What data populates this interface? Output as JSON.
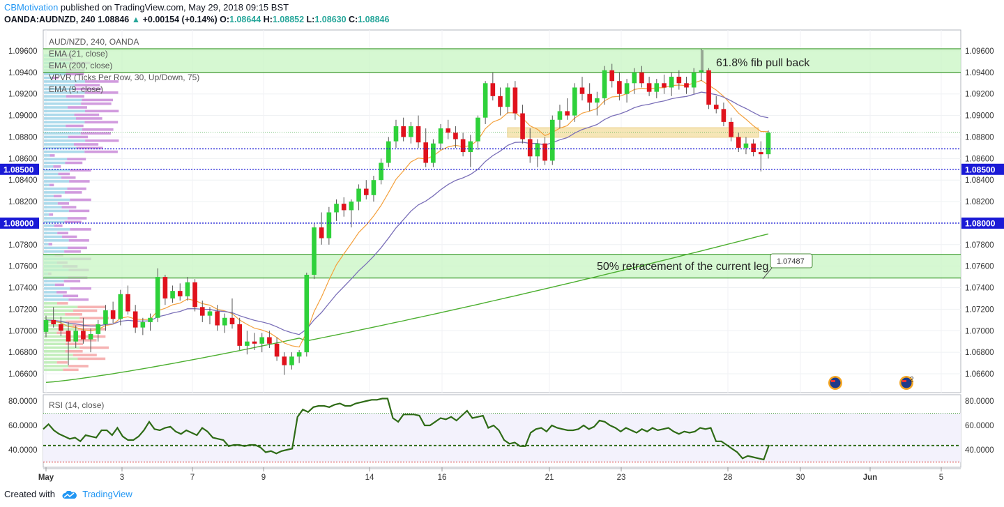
{
  "header": {
    "author": "CBMotivation",
    "published": " published on TradingView.com, May 29, 2018 09:15 BST",
    "symbol": "OANDA:AUDNZD, 240",
    "last": "1.08846",
    "change": "+0.00154 (+0.14%)",
    "o_label": "O:",
    "o": "1.08644",
    "h_label": "H:",
    "h": "1.08852",
    "l_label": "L:",
    "l": "1.08630",
    "c_label": "C:",
    "c": "1.08846"
  },
  "footer": {
    "created_with": "Created with",
    "brand": "TradingView"
  },
  "indicators": [
    "AUD/NZD, 240, OANDA",
    "EMA (21, close)",
    "EMA (200, close)",
    "VPVR (Ticks Per Row, 30, Up/Down, 75)",
    "EMA (9, close)"
  ],
  "rsi_label": "RSI (14, close)",
  "colors": {
    "up": "#2ed13a",
    "down": "#e0121c",
    "ema21": "#f4a03c",
    "ema200": "#4caf30",
    "ema9": "#7a6fb8",
    "zone": "#c8f5c3",
    "zone_line": "#3c9a2e",
    "level": "#1a1ad6",
    "rsi": "#2e6b16",
    "orange_zone": "#f6e4b0"
  },
  "chart_data": [
    {
      "type": "candlestick",
      "title": "",
      "x_ticks": [
        "May",
        "3",
        "7",
        "9",
        "14",
        "16",
        "21",
        "23",
        "28",
        "30",
        "Jun",
        "5"
      ],
      "y_ticks": [
        "1.09600",
        "1.09400",
        "1.09200",
        "1.09000",
        "1.08800",
        "1.08600",
        "1.08400",
        "1.08200",
        "1.08000",
        "1.07800",
        "1.07600",
        "1.07400",
        "1.07200",
        "1.07000",
        "1.06800",
        "1.06600"
      ],
      "ylim": [
        1.065,
        1.097
      ],
      "price_labels": [
        "1.08500",
        "1.08000"
      ],
      "horizontal_levels": [
        1.085,
        1.0869,
        1.08
      ],
      "zones": [
        {
          "from": 1.094,
          "to": 1.0962,
          "label": "61.8% fib pull back"
        },
        {
          "from": 1.0749,
          "to": 1.0771,
          "label": "50% retracement of the current leg"
        }
      ],
      "resistance_box": {
        "from": 1.0883,
        "to": 1.0888
      },
      "callout": "1.07487",
      "candles": [
        [
          1.0699,
          1.0714,
          1.0694,
          1.071
        ],
        [
          1.071,
          1.0722,
          1.0703,
          1.0706
        ],
        [
          1.0706,
          1.0713,
          1.0695,
          1.07
        ],
        [
          1.07,
          1.0708,
          1.0668,
          1.069
        ],
        [
          1.069,
          1.0705,
          1.0684,
          1.07
        ],
        [
          1.07,
          1.0712,
          1.0688,
          1.0692
        ],
        [
          1.0692,
          1.0702,
          1.068,
          1.0697
        ],
        [
          1.0697,
          1.071,
          1.069,
          1.0706
        ],
        [
          1.0706,
          1.0724,
          1.07,
          1.0719
        ],
        [
          1.0719,
          1.0727,
          1.0707,
          1.0711
        ],
        [
          1.0711,
          1.0738,
          1.0705,
          1.0734
        ],
        [
          1.0734,
          1.0742,
          1.0715,
          1.0718
        ],
        [
          1.0718,
          1.0724,
          1.0698,
          1.0703
        ],
        [
          1.0703,
          1.0712,
          1.0696,
          1.0708
        ],
        [
          1.0708,
          1.0716,
          1.07,
          1.0712
        ],
        [
          1.0712,
          1.0758,
          1.0708,
          1.075
        ],
        [
          1.075,
          1.0752,
          1.0724,
          1.073
        ],
        [
          1.073,
          1.0742,
          1.0726,
          1.0737
        ],
        [
          1.0737,
          1.0744,
          1.0728,
          1.0732
        ],
        [
          1.0732,
          1.075,
          1.0728,
          1.0745
        ],
        [
          1.0745,
          1.0748,
          1.0718,
          1.0722
        ],
        [
          1.0722,
          1.0728,
          1.0708,
          1.0714
        ],
        [
          1.0714,
          1.0722,
          1.0706,
          1.0718
        ],
        [
          1.0718,
          1.0724,
          1.07,
          1.0705
        ],
        [
          1.0705,
          1.0716,
          1.0698,
          1.0712
        ],
        [
          1.0712,
          1.073,
          1.0702,
          1.0706
        ],
        [
          1.0706,
          1.0712,
          1.0682,
          1.0686
        ],
        [
          1.0686,
          1.07,
          1.0678,
          1.069
        ],
        [
          1.069,
          1.0698,
          1.0682,
          1.0688
        ],
        [
          1.0688,
          1.0698,
          1.068,
          1.0694
        ],
        [
          1.0694,
          1.07,
          1.0684,
          1.0688
        ],
        [
          1.0688,
          1.0694,
          1.0672,
          1.0676
        ],
        [
          1.0676,
          1.068,
          1.0659,
          1.0668
        ],
        [
          1.0668,
          1.068,
          1.0664,
          1.0676
        ],
        [
          1.0676,
          1.0682,
          1.067,
          1.068
        ],
        [
          1.068,
          1.0754,
          1.0676,
          1.0752
        ],
        [
          1.0752,
          1.08,
          1.0748,
          1.0796
        ],
        [
          1.0796,
          1.081,
          1.078,
          1.0786
        ],
        [
          1.0786,
          1.0815,
          1.078,
          1.081
        ],
        [
          1.081,
          1.0822,
          1.0802,
          1.0818
        ],
        [
          1.0818,
          1.0824,
          1.0806,
          1.0812
        ],
        [
          1.0812,
          1.0822,
          1.0796,
          1.082
        ],
        [
          1.082,
          1.0836,
          1.0812,
          1.0832
        ],
        [
          1.0832,
          1.084,
          1.0822,
          1.0826
        ],
        [
          1.0826,
          1.0844,
          1.082,
          1.084
        ],
        [
          1.084,
          1.086,
          1.0836,
          1.0856
        ],
        [
          1.0856,
          1.088,
          1.0852,
          1.0876
        ],
        [
          1.0876,
          1.0896,
          1.087,
          1.089
        ],
        [
          1.089,
          1.0898,
          1.0876,
          1.088
        ],
        [
          1.088,
          1.0894,
          1.0874,
          1.089
        ],
        [
          1.089,
          1.09,
          1.087,
          1.0875
        ],
        [
          1.0875,
          1.0888,
          1.0852,
          1.0856
        ],
        [
          1.0856,
          1.0878,
          1.0852,
          1.0874
        ],
        [
          1.0874,
          1.0892,
          1.0868,
          1.0888
        ],
        [
          1.0888,
          1.0896,
          1.0878,
          1.0884
        ],
        [
          1.0884,
          1.089,
          1.087,
          1.0878
        ],
        [
          1.0878,
          1.0884,
          1.0862,
          1.0866
        ],
        [
          1.0866,
          1.0882,
          1.0852,
          1.0876
        ],
        [
          1.0876,
          1.09,
          1.0868,
          1.0898
        ],
        [
          1.0898,
          1.0932,
          1.0892,
          1.093
        ],
        [
          1.093,
          1.094,
          1.0914,
          1.0918
        ],
        [
          1.0918,
          1.0926,
          1.09,
          1.0908
        ],
        [
          1.0908,
          1.093,
          1.0902,
          1.0926
        ],
        [
          1.0926,
          1.0932,
          1.0896,
          1.0902
        ],
        [
          1.0902,
          1.091,
          1.0874,
          1.0878
        ],
        [
          1.0878,
          1.0888,
          1.0856,
          1.0862
        ],
        [
          1.0862,
          1.0878,
          1.0852,
          1.0874
        ],
        [
          1.0874,
          1.088,
          1.0854,
          1.0858
        ],
        [
          1.0858,
          1.09,
          1.0854,
          1.0896
        ],
        [
          1.0896,
          1.091,
          1.0888,
          1.0904
        ],
        [
          1.0904,
          1.0916,
          1.0896,
          1.09
        ],
        [
          1.09,
          1.093,
          1.0894,
          1.0926
        ],
        [
          1.0926,
          1.0936,
          1.0914,
          1.092
        ],
        [
          1.092,
          1.093,
          1.0904,
          1.0912
        ],
        [
          1.0912,
          1.0922,
          1.09,
          1.0916
        ],
        [
          1.0916,
          1.0946,
          1.091,
          1.0942
        ],
        [
          1.0942,
          1.0948,
          1.0926,
          1.0932
        ],
        [
          1.0932,
          1.094,
          1.0914,
          1.092
        ],
        [
          1.092,
          1.0934,
          1.0912,
          1.093
        ],
        [
          1.093,
          1.0944,
          1.092,
          1.094
        ],
        [
          1.094,
          1.0946,
          1.0926,
          1.093
        ],
        [
          1.093,
          1.0936,
          1.0918,
          1.0922
        ],
        [
          1.0922,
          1.0934,
          1.0916,
          1.093
        ],
        [
          1.093,
          1.0938,
          1.092,
          1.0926
        ],
        [
          1.0926,
          1.094,
          1.0918,
          1.0936
        ],
        [
          1.0936,
          1.0942,
          1.0924,
          1.093
        ],
        [
          1.093,
          1.0936,
          1.092,
          1.0926
        ],
        [
          1.0926,
          1.0944,
          1.092,
          1.094
        ],
        [
          1.094,
          1.0962,
          1.0932,
          1.0942
        ],
        [
          1.0942,
          1.0944,
          1.0906,
          1.091
        ],
        [
          1.091,
          1.0918,
          1.0902,
          1.0906
        ],
        [
          1.0906,
          1.0912,
          1.089,
          1.0894
        ],
        [
          1.0894,
          1.0898,
          1.0876,
          1.088
        ],
        [
          1.088,
          1.0884,
          1.0866,
          1.087
        ],
        [
          1.087,
          1.088,
          1.0864,
          1.0874
        ],
        [
          1.0874,
          1.0878,
          1.0862,
          1.0866
        ],
        [
          1.0866,
          1.0876,
          1.0848,
          1.0864
        ],
        [
          1.0864,
          1.0886,
          1.086,
          1.0884
        ]
      ]
    },
    {
      "type": "line",
      "title": "RSI (14, close)",
      "y_ticks": [
        "80.0000",
        "60.0000",
        "40.0000"
      ],
      "ylim": [
        26,
        83
      ],
      "levels": [
        70,
        43.5,
        30
      ],
      "values": [
        57,
        61,
        56,
        53,
        51,
        49,
        50,
        47,
        52,
        51,
        50,
        56,
        56,
        52,
        58,
        51,
        48,
        48,
        51,
        56,
        63,
        57,
        56,
        58,
        59,
        55,
        53,
        56,
        54,
        52,
        58,
        55,
        50,
        49,
        48,
        43,
        44,
        44,
        43,
        44,
        44,
        42,
        38,
        39,
        37,
        39,
        40,
        41,
        67,
        73,
        71,
        75,
        76,
        76,
        75,
        77,
        78,
        76,
        76,
        78,
        79,
        80,
        81,
        81,
        82,
        82,
        66,
        63,
        69,
        69,
        69,
        68,
        60,
        60,
        63,
        66,
        65,
        67,
        64,
        68,
        72,
        66,
        67,
        68,
        58,
        60,
        56,
        48,
        45,
        46,
        43,
        43,
        54,
        57,
        58,
        55,
        60,
        58,
        57,
        56,
        56,
        57,
        60,
        57,
        59,
        64,
        63,
        60,
        58,
        55,
        58,
        56,
        54,
        57,
        55,
        58,
        56,
        57,
        58,
        55,
        53,
        55,
        54,
        55,
        58,
        57,
        58,
        47,
        47,
        44,
        41,
        38,
        33,
        35,
        34,
        33,
        32,
        44
      ]
    }
  ]
}
